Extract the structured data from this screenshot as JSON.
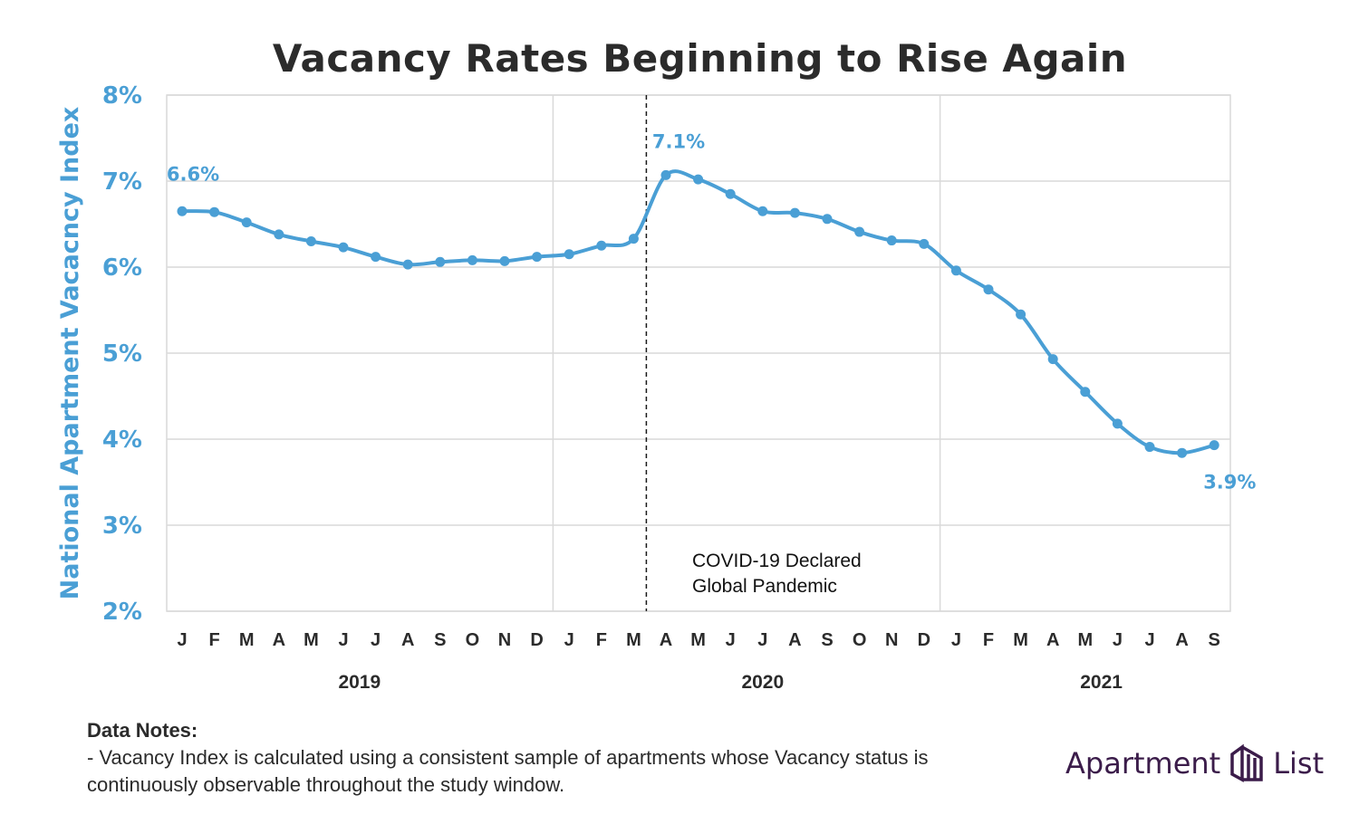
{
  "title": "Vacancy Rates Beginning to Rise Again",
  "chart_data": {
    "type": "line",
    "title": "Vacancy Rates Beginning to Rise Again",
    "ylabel": "National Apartment Vacacncy Index",
    "ylim": [
      2,
      8
    ],
    "y_ticks": [
      "2%",
      "3%",
      "4%",
      "5%",
      "6%",
      "7%",
      "8%"
    ],
    "month_labels": [
      "J",
      "F",
      "M",
      "A",
      "M",
      "J",
      "J",
      "A",
      "S",
      "O",
      "N",
      "D",
      "J",
      "F",
      "M",
      "A",
      "M",
      "J",
      "J",
      "A",
      "S",
      "O",
      "N",
      "D",
      "J",
      "F",
      "M",
      "A",
      "M",
      "J",
      "J",
      "A",
      "S"
    ],
    "year_labels": [
      "2019",
      "2020",
      "2021"
    ],
    "grid": true,
    "series": [
      {
        "values": [
          6.65,
          6.64,
          6.52,
          6.38,
          6.3,
          6.23,
          6.12,
          6.03,
          6.06,
          6.08,
          6.07,
          6.12,
          6.15,
          6.25,
          6.33,
          7.07,
          7.02,
          6.85,
          6.65,
          6.63,
          6.56,
          6.41,
          6.31,
          6.27,
          5.96,
          5.74,
          5.45,
          4.93,
          4.55,
          4.18,
          3.91,
          3.84,
          3.93
        ],
        "color": "#4a9fd5"
      }
    ],
    "annotations": [
      {
        "text": "6.6%",
        "index": 0
      },
      {
        "text": "7.1%",
        "index": 15
      },
      {
        "text": "3.9%",
        "index": 32
      }
    ],
    "event": {
      "text_line1": "COVID-19 Declared",
      "text_line2": "Global Pandemic",
      "after_index": 14
    }
  },
  "notes": {
    "heading": "Data Notes:",
    "line1": "- Vacancy Index is calculated using a consistent sample of apartments whose Vacancy status is",
    "line2": "continuously observable throughout the study window."
  },
  "logo": {
    "left": "Apartment",
    "right": "List"
  }
}
